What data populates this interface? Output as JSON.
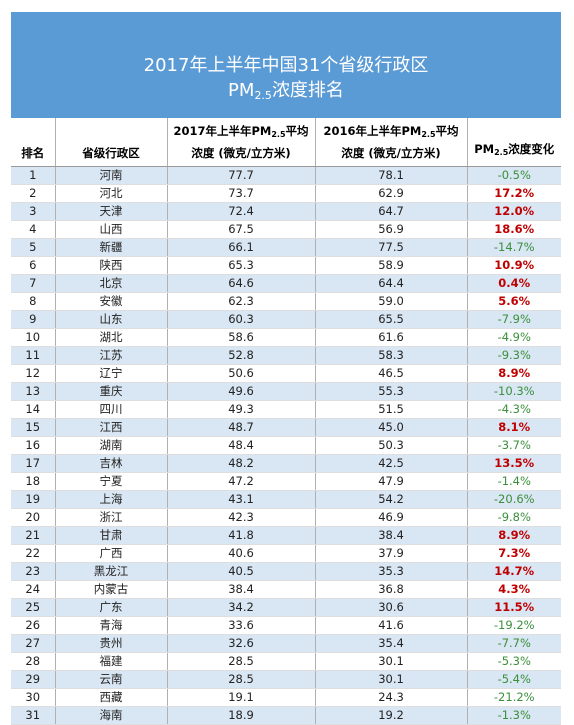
{
  "title": {
    "line1": "2017年上半年中国31个省级行政区",
    "line2_pre": "PM",
    "line2_sub": "2.5",
    "line2_post": "浓度排名"
  },
  "headers": {
    "rank": "排名",
    "province": "省级行政区",
    "y2017_line1_pre": "2017年上半年PM",
    "y2017_line1_sub": "2.5",
    "y2017_line1_post": "平均",
    "y2017_line2": "浓度 (微克/立方米)",
    "y2016_line1_pre": "2016年上半年PM",
    "y2016_line1_sub": "2.5",
    "y2016_line1_post": "平均",
    "y2016_line2": "浓度 (微克/立方米)",
    "change_pre": "PM",
    "change_sub": "2.5",
    "change_post": "浓度变化"
  },
  "rows": [
    {
      "rank": "1",
      "province": "河南",
      "v2017": "77.7",
      "v2016": "78.1",
      "change": "-0.5%",
      "trend": "down"
    },
    {
      "rank": "2",
      "province": "河北",
      "v2017": "73.7",
      "v2016": "62.9",
      "change": "17.2%",
      "trend": "up"
    },
    {
      "rank": "3",
      "province": "天津",
      "v2017": "72.4",
      "v2016": "64.7",
      "change": "12.0%",
      "trend": "up"
    },
    {
      "rank": "4",
      "province": "山西",
      "v2017": "67.5",
      "v2016": "56.9",
      "change": "18.6%",
      "trend": "up"
    },
    {
      "rank": "5",
      "province": "新疆",
      "v2017": "66.1",
      "v2016": "77.5",
      "change": "-14.7%",
      "trend": "down"
    },
    {
      "rank": "6",
      "province": "陕西",
      "v2017": "65.3",
      "v2016": "58.9",
      "change": "10.9%",
      "trend": "up"
    },
    {
      "rank": "7",
      "province": "北京",
      "v2017": "64.6",
      "v2016": "64.4",
      "change": "0.4%",
      "trend": "up"
    },
    {
      "rank": "8",
      "province": "安徽",
      "v2017": "62.3",
      "v2016": "59.0",
      "change": "5.6%",
      "trend": "up"
    },
    {
      "rank": "9",
      "province": "山东",
      "v2017": "60.3",
      "v2016": "65.5",
      "change": "-7.9%",
      "trend": "down"
    },
    {
      "rank": "10",
      "province": "湖北",
      "v2017": "58.6",
      "v2016": "61.6",
      "change": "-4.9%",
      "trend": "down"
    },
    {
      "rank": "11",
      "province": "江苏",
      "v2017": "52.8",
      "v2016": "58.3",
      "change": "-9.3%",
      "trend": "down"
    },
    {
      "rank": "12",
      "province": "辽宁",
      "v2017": "50.6",
      "v2016": "46.5",
      "change": "8.9%",
      "trend": "up"
    },
    {
      "rank": "13",
      "province": "重庆",
      "v2017": "49.6",
      "v2016": "55.3",
      "change": "-10.3%",
      "trend": "down"
    },
    {
      "rank": "14",
      "province": "四川",
      "v2017": "49.3",
      "v2016": "51.5",
      "change": "-4.3%",
      "trend": "down"
    },
    {
      "rank": "15",
      "province": "江西",
      "v2017": "48.7",
      "v2016": "45.0",
      "change": "8.1%",
      "trend": "up"
    },
    {
      "rank": "16",
      "province": "湖南",
      "v2017": "48.4",
      "v2016": "50.3",
      "change": "-3.7%",
      "trend": "down"
    },
    {
      "rank": "17",
      "province": "吉林",
      "v2017": "48.2",
      "v2016": "42.5",
      "change": "13.5%",
      "trend": "up"
    },
    {
      "rank": "18",
      "province": "宁夏",
      "v2017": "47.2",
      "v2016": "47.9",
      "change": "-1.4%",
      "trend": "down"
    },
    {
      "rank": "19",
      "province": "上海",
      "v2017": "43.1",
      "v2016": "54.2",
      "change": "-20.6%",
      "trend": "down"
    },
    {
      "rank": "20",
      "province": "浙江",
      "v2017": "42.3",
      "v2016": "46.9",
      "change": "-9.8%",
      "trend": "down"
    },
    {
      "rank": "21",
      "province": "甘肃",
      "v2017": "41.8",
      "v2016": "38.4",
      "change": "8.9%",
      "trend": "up"
    },
    {
      "rank": "22",
      "province": "广西",
      "v2017": "40.6",
      "v2016": "37.9",
      "change": "7.3%",
      "trend": "up"
    },
    {
      "rank": "23",
      "province": "黑龙江",
      "v2017": "40.5",
      "v2016": "35.3",
      "change": "14.7%",
      "trend": "up"
    },
    {
      "rank": "24",
      "province": "内蒙古",
      "v2017": "38.4",
      "v2016": "36.8",
      "change": "4.3%",
      "trend": "up"
    },
    {
      "rank": "25",
      "province": "广东",
      "v2017": "34.2",
      "v2016": "30.6",
      "change": "11.5%",
      "trend": "up"
    },
    {
      "rank": "26",
      "province": "青海",
      "v2017": "33.6",
      "v2016": "41.6",
      "change": "-19.2%",
      "trend": "down"
    },
    {
      "rank": "27",
      "province": "贵州",
      "v2017": "32.6",
      "v2016": "35.4",
      "change": "-7.7%",
      "trend": "down"
    },
    {
      "rank": "28",
      "province": "福建",
      "v2017": "28.5",
      "v2016": "30.1",
      "change": "-5.3%",
      "trend": "down"
    },
    {
      "rank": "29",
      "province": "云南",
      "v2017": "28.5",
      "v2016": "30.1",
      "change": "-5.4%",
      "trend": "down"
    },
    {
      "rank": "30",
      "province": "西藏",
      "v2017": "19.1",
      "v2016": "24.3",
      "change": "-21.2%",
      "trend": "down"
    },
    {
      "rank": "31",
      "province": "海南",
      "v2017": "18.9",
      "v2016": "19.2",
      "change": "-1.3%",
      "trend": "down"
    }
  ],
  "colors": {
    "banner": "#5b9bd5",
    "stripe": "#d9e6f3",
    "increase": "#c00000",
    "decrease": "#3a8f3a"
  }
}
